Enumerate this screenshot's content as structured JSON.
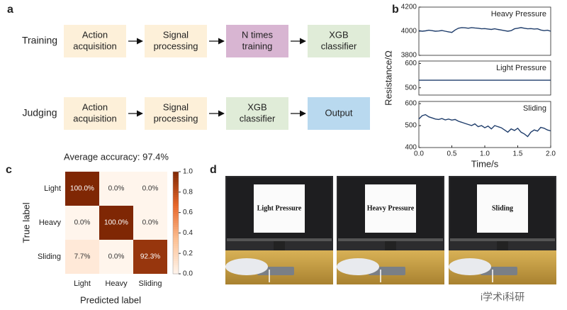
{
  "panel_labels": [
    "a",
    "b",
    "c",
    "d"
  ],
  "flowchart": {
    "rows": [
      {
        "label": "Training",
        "steps": [
          [
            "Action",
            "acquisition"
          ],
          [
            "Signal",
            "processing"
          ],
          [
            "N times",
            "training"
          ],
          [
            "XGB",
            "classifier"
          ]
        ],
        "colors": [
          "#fdf0d9",
          "#fdf0d9",
          "#d8b5d2",
          "#e0ecd8"
        ]
      },
      {
        "label": "Judging",
        "steps": [
          [
            "Action",
            "acquisition"
          ],
          [
            "Signal",
            "processing"
          ],
          [
            "XGB",
            "classifier"
          ],
          [
            "Output"
          ]
        ],
        "colors": [
          "#fdf0d9",
          "#fdf0d9",
          "#e0ecd8",
          "#b9d9ef"
        ]
      }
    ]
  },
  "chart_data": [
    {
      "type": "line",
      "annotation": "Heavy Pressure",
      "color": "#1f3d6b",
      "x": [
        0,
        0.05,
        0.1,
        0.15,
        0.2,
        0.25,
        0.3,
        0.35,
        0.4,
        0.45,
        0.5,
        0.55,
        0.6,
        0.65,
        0.7,
        0.75,
        0.8,
        0.85,
        0.9,
        0.95,
        1.0,
        1.05,
        1.1,
        1.15,
        1.2,
        1.25,
        1.3,
        1.35,
        1.4,
        1.45,
        1.5,
        1.55,
        1.6,
        1.65,
        1.7,
        1.75,
        1.8,
        1.85,
        1.9,
        1.95,
        2.0
      ],
      "values": [
        4005,
        4000,
        4003,
        4008,
        4005,
        4000,
        4002,
        4006,
        4000,
        3995,
        3990,
        4010,
        4025,
        4030,
        4028,
        4025,
        4030,
        4027,
        4025,
        4020,
        4022,
        4018,
        4015,
        4020,
        4015,
        4010,
        4005,
        4000,
        4005,
        4020,
        4025,
        4030,
        4025,
        4020,
        4022,
        4018,
        4020,
        4010,
        4005,
        4008,
        4000
      ],
      "xlim": [
        0,
        2
      ],
      "ylim": [
        3800,
        4200
      ],
      "yticks": [
        3800,
        4000,
        4200
      ]
    },
    {
      "type": "line",
      "annotation": "Light Pressure",
      "ylabel": "Resistance/Ω",
      "color": "#1f3d6b",
      "x": [
        0,
        0.05,
        0.1,
        0.15,
        0.2,
        0.25,
        0.3,
        0.35,
        0.4,
        0.45,
        0.5,
        0.55,
        0.6,
        0.65,
        0.7,
        0.75,
        0.8,
        0.85,
        0.9,
        0.95,
        1.0,
        1.05,
        1.1,
        1.15,
        1.2,
        1.25,
        1.3,
        1.35,
        1.4,
        1.45,
        1.5,
        1.55,
        1.6,
        1.65,
        1.7,
        1.75,
        1.8,
        1.85,
        1.9,
        1.95,
        2.0
      ],
      "values": [
        531,
        531,
        531,
        531,
        531,
        531,
        531,
        531,
        531,
        531,
        531,
        531,
        531,
        531,
        531,
        531,
        531,
        531,
        531,
        531,
        531,
        531,
        531,
        531,
        531,
        531,
        531,
        531,
        531,
        531,
        531,
        531,
        531,
        531,
        531,
        531,
        531,
        531,
        531,
        531,
        531
      ],
      "xlim": [
        0,
        2
      ],
      "ylim": [
        470,
        610
      ],
      "yticks": [
        500,
        600
      ]
    },
    {
      "type": "line",
      "annotation": "Sliding",
      "xlabel": "Time/s",
      "color": "#1f3d6b",
      "x": [
        0,
        0.05,
        0.1,
        0.15,
        0.2,
        0.25,
        0.3,
        0.35,
        0.4,
        0.45,
        0.5,
        0.55,
        0.6,
        0.65,
        0.7,
        0.75,
        0.8,
        0.85,
        0.9,
        0.95,
        1.0,
        1.05,
        1.1,
        1.15,
        1.2,
        1.25,
        1.3,
        1.35,
        1.4,
        1.45,
        1.5,
        1.55,
        1.6,
        1.65,
        1.7,
        1.75,
        1.8,
        1.85,
        1.9,
        1.95,
        2.0
      ],
      "values": [
        530,
        545,
        550,
        540,
        535,
        530,
        528,
        532,
        526,
        530,
        525,
        528,
        520,
        515,
        510,
        505,
        500,
        508,
        495,
        500,
        490,
        498,
        485,
        500,
        495,
        490,
        480,
        470,
        485,
        478,
        488,
        470,
        462,
        450,
        470,
        480,
        475,
        492,
        488,
        480,
        476
      ],
      "xlim": [
        0,
        2
      ],
      "ylim": [
        400,
        610
      ],
      "yticks": [
        400,
        500,
        600
      ],
      "xticks": [
        {
          "value": 0,
          "label": "0.0"
        },
        0.5,
        {
          "value": 1,
          "label": "1.0"
        },
        1.5,
        {
          "value": 2,
          "label": "2.0"
        }
      ]
    },
    {
      "type": "heatmap",
      "title": "Average accuracy: 97.4%",
      "xlabel": "Predicted label",
      "ylabel": "True label",
      "x_categories": [
        "Light",
        "Heavy",
        "Sliding"
      ],
      "y_categories": [
        "Light",
        "Heavy",
        "Sliding"
      ],
      "values": [
        [
          1.0,
          0.0,
          0.0
        ],
        [
          0.0,
          1.0,
          0.0
        ],
        [
          0.077,
          0.0,
          0.923
        ]
      ],
      "value_labels": [
        [
          "100.0%",
          "0.0%",
          "0.0%"
        ],
        [
          "0.0%",
          "100.0%",
          "0.0%"
        ],
        [
          "7.7%",
          "0.0%",
          "92.3%"
        ]
      ],
      "zlim": [
        0,
        1
      ],
      "zticks": [
        {
          "value": 0,
          "label": "0.0"
        },
        0.2,
        0.4,
        0.6,
        0.8,
        {
          "value": 1,
          "label": "1.0"
        }
      ],
      "colormap": [
        "#fff5ec",
        "#fdc194",
        "#e8672a",
        "#7f2704"
      ]
    }
  ],
  "photos": [
    {
      "sign": "Light Pressure"
    },
    {
      "sign": "Heavy Pressure"
    },
    {
      "sign": "Sliding"
    }
  ],
  "watermark": "i学术i科研"
}
